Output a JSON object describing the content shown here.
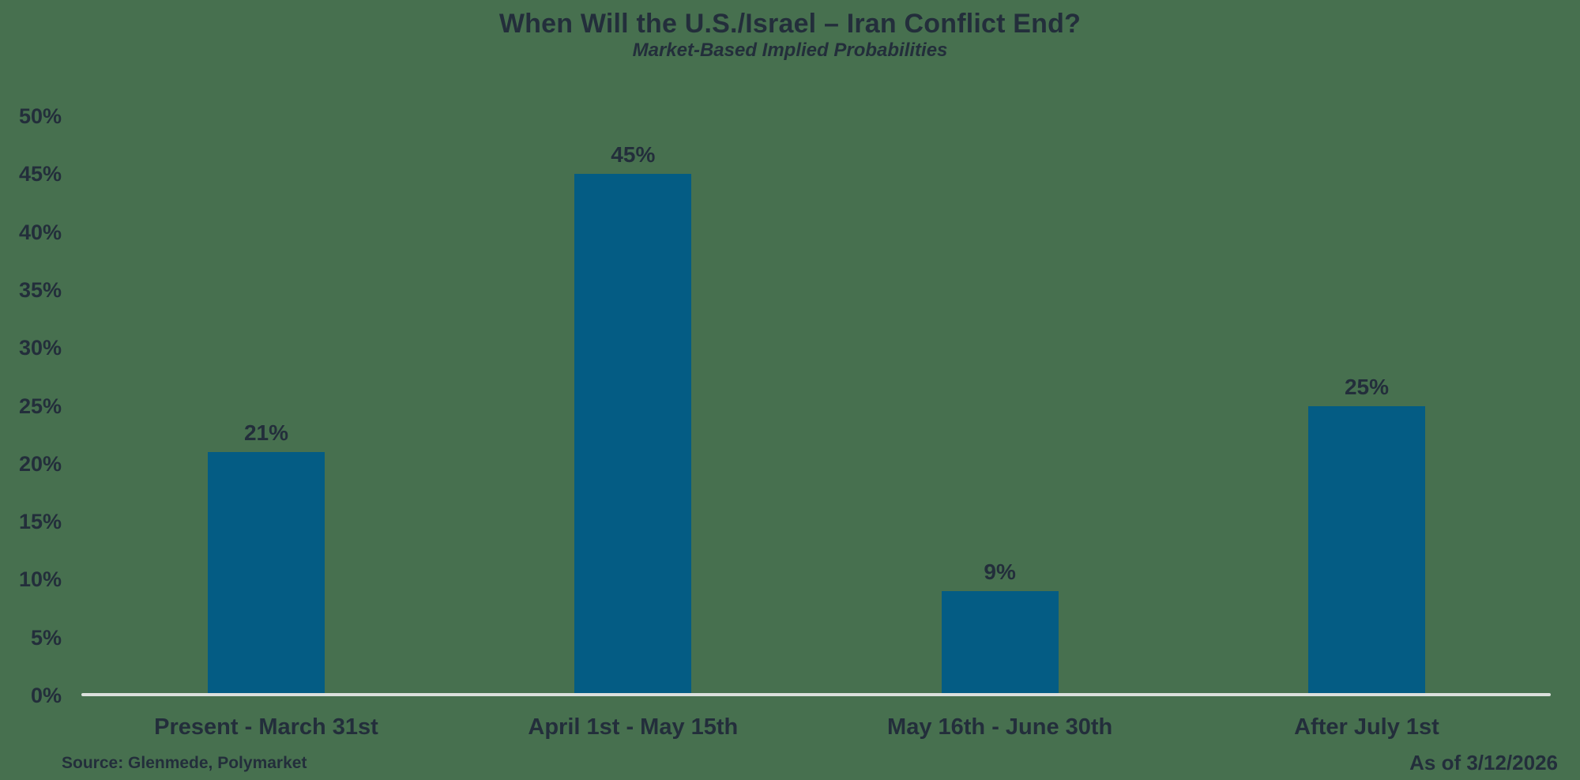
{
  "colors": {
    "background": "#47704F",
    "bar": "#045C84",
    "text": "#232E3B",
    "axis_line": "#DCE0DD"
  },
  "footer": {
    "source": "Source: Glenmede, Polymarket",
    "as_of": "As of 3/12/2026"
  },
  "chart_data": {
    "type": "bar",
    "title": "When Will the U.S./Israel – Iran Conflict End?",
    "subtitle": "Market-Based Implied Probabilities",
    "categories": [
      "Present - March 31st",
      "April 1st - May 15th",
      "May 16th - June 30th",
      "After July 1st"
    ],
    "values": [
      21,
      45,
      9,
      25
    ],
    "value_labels": [
      "21%",
      "45%",
      "9%",
      "25%"
    ],
    "xlabel": "",
    "ylabel": "",
    "ylim": [
      0,
      50
    ],
    "ytick_step": 5,
    "ytick_labels": [
      "0%",
      "5%",
      "10%",
      "15%",
      "20%",
      "25%",
      "30%",
      "35%",
      "40%",
      "45%",
      "50%"
    ],
    "grid": false,
    "legend": "none",
    "bar_color": "#045C84"
  }
}
